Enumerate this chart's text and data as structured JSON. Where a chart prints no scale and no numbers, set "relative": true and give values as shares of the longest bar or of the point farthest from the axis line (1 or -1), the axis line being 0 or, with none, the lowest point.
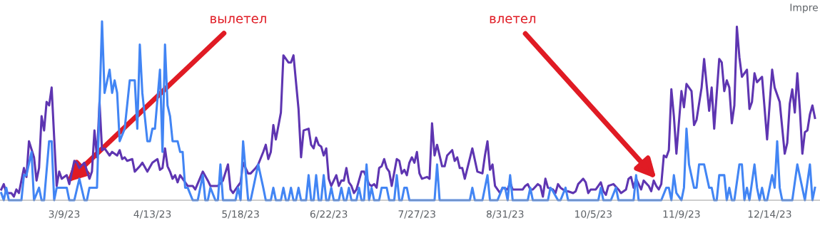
{
  "chart_data": {
    "type": "line",
    "relative": true,
    "tick_labels": "x",
    "xlim": [
      "2023-02-11T12:00",
      "2024-01-03"
    ],
    "xticks": [
      {
        "value": "2023-03-09",
        "label": "3/9/23"
      },
      {
        "value": "2023-04-13",
        "label": "4/13/23"
      },
      {
        "value": "2023-05-18",
        "label": "5/18/23"
      },
      {
        "value": "2023-06-22",
        "label": "6/22/23"
      },
      {
        "value": "2023-07-27",
        "label": "7/27/23"
      },
      {
        "value": "2023-08-31",
        "label": "8/31/23"
      },
      {
        "value": "2023-10-05",
        "label": "10/5/23"
      },
      {
        "value": "2023-11-09",
        "label": "11/9/23"
      },
      {
        "value": "2023-12-14",
        "label": "12/14/23"
      }
    ],
    "annotations": [
      {
        "text": "вылетел",
        "x": "2023-03-10",
        "y": 0.1
      },
      {
        "text": "влетел",
        "x": "2023-10-30",
        "y": 0.12
      },
      "Impre"
    ],
    "series": [
      {
        "color": "#5e35b1",
        "x": [
          "2023-02-12",
          "2023-02-13",
          "2023-02-14",
          "2023-02-16",
          "2023-02-17",
          "2023-02-18",
          "2023-02-19",
          "2023-02-21",
          "2023-02-22",
          "2023-02-23",
          "2023-02-25",
          "2023-02-26",
          "2023-02-27",
          "2023-02-28",
          "2023-03-01",
          "2023-03-02",
          "2023-03-03",
          "2023-03-04",
          "2023-03-05",
          "2023-03-06",
          "2023-03-07",
          "2023-03-08",
          "2023-03-09",
          "2023-03-10",
          "2023-03-11",
          "2023-03-13",
          "2023-03-14",
          "2023-03-15",
          "2023-03-17",
          "2023-03-19",
          "2023-03-20",
          "2023-03-21",
          "2023-03-22",
          "2023-03-23",
          "2023-03-24",
          "2023-03-25",
          "2023-03-27",
          "2023-03-28",
          "2023-03-30",
          "2023-03-31",
          "2023-04-01",
          "2023-04-02",
          "2023-04-03",
          "2023-04-05",
          "2023-04-06",
          "2023-04-08",
          "2023-04-09",
          "2023-04-11",
          "2023-04-13",
          "2023-04-15",
          "2023-04-16",
          "2023-04-17",
          "2023-04-18",
          "2023-04-19",
          "2023-04-20",
          "2023-04-21",
          "2023-04-22",
          "2023-04-23",
          "2023-04-24",
          "2023-04-26",
          "2023-04-27",
          "2023-04-29",
          "2023-04-30",
          "2023-05-03",
          "2023-05-05",
          "2023-05-06",
          "2023-05-08",
          "2023-05-09",
          "2023-05-11",
          "2023-05-13",
          "2023-05-14",
          "2023-05-15",
          "2023-05-18",
          "2023-05-19",
          "2023-05-21",
          "2023-05-22",
          "2023-05-24",
          "2023-05-25",
          "2023-05-27",
          "2023-05-28",
          "2023-05-29",
          "2023-05-30",
          "2023-05-31",
          "2023-06-01",
          "2023-06-03",
          "2023-06-04",
          "2023-06-06",
          "2023-06-07",
          "2023-06-08",
          "2023-06-10",
          "2023-06-11",
          "2023-06-12",
          "2023-06-14",
          "2023-06-15",
          "2023-06-16",
          "2023-06-17",
          "2023-06-18",
          "2023-06-19",
          "2023-06-20",
          "2023-06-21",
          "2023-06-22",
          "2023-06-23",
          "2023-06-25",
          "2023-06-26",
          "2023-06-27",
          "2023-06-28",
          "2023-06-29",
          "2023-06-30",
          "2023-07-01",
          "2023-07-02",
          "2023-07-03",
          "2023-07-05",
          "2023-07-06",
          "2023-07-08",
          "2023-07-09",
          "2023-07-10",
          "2023-07-11",
          "2023-07-12",
          "2023-07-13",
          "2023-07-14",
          "2023-07-15",
          "2023-07-16",
          "2023-07-17",
          "2023-07-19",
          "2023-07-20",
          "2023-07-21",
          "2023-07-22",
          "2023-07-23",
          "2023-07-24",
          "2023-07-25",
          "2023-07-26",
          "2023-07-27",
          "2023-07-28",
          "2023-07-29",
          "2023-07-31",
          "2023-08-01",
          "2023-08-02",
          "2023-08-03",
          "2023-08-04",
          "2023-08-06",
          "2023-08-07",
          "2023-08-08",
          "2023-08-10",
          "2023-08-11",
          "2023-08-12",
          "2023-08-13",
          "2023-08-14",
          "2023-08-15",
          "2023-08-18",
          "2023-08-20",
          "2023-08-22",
          "2023-08-23",
          "2023-08-24",
          "2023-08-25",
          "2023-08-26",
          "2023-08-27",
          "2023-08-29",
          "2023-08-30",
          "2023-09-01",
          "2023-09-02",
          "2023-09-03",
          "2023-09-04",
          "2023-09-05",
          "2023-09-07",
          "2023-09-08",
          "2023-09-09",
          "2023-09-10",
          "2023-09-11",
          "2023-09-13",
          "2023-09-14",
          "2023-09-15",
          "2023-09-16",
          "2023-09-17",
          "2023-09-19",
          "2023-09-20",
          "2023-09-21",
          "2023-09-22",
          "2023-09-24",
          "2023-09-25",
          "2023-09-27",
          "2023-09-28",
          "2023-09-29",
          "2023-10-01",
          "2023-10-02",
          "2023-10-03",
          "2023-10-04",
          "2023-10-06",
          "2023-10-07",
          "2023-10-08",
          "2023-10-09",
          "2023-10-10",
          "2023-10-11",
          "2023-10-13",
          "2023-10-15",
          "2023-10-16",
          "2023-10-18",
          "2023-10-19",
          "2023-10-20",
          "2023-10-21",
          "2023-10-22",
          "2023-10-23",
          "2023-10-24",
          "2023-10-25",
          "2023-10-27",
          "2023-10-28",
          "2023-10-29",
          "2023-10-30",
          "2023-10-31",
          "2023-11-01",
          "2023-11-02",
          "2023-11-03",
          "2023-11-04",
          "2023-11-05",
          "2023-11-06",
          "2023-11-07",
          "2023-11-09",
          "2023-11-10",
          "2023-11-11",
          "2023-11-13",
          "2023-11-14",
          "2023-11-15",
          "2023-11-17",
          "2023-11-18",
          "2023-11-20",
          "2023-11-21",
          "2023-11-22",
          "2023-11-24",
          "2023-11-25",
          "2023-11-26",
          "2023-11-27",
          "2023-11-28",
          "2023-11-29",
          "2023-11-30",
          "2023-12-01",
          "2023-12-02",
          "2023-12-03",
          "2023-12-05",
          "2023-12-06",
          "2023-12-07",
          "2023-12-08",
          "2023-12-09",
          "2023-12-11",
          "2023-12-13",
          "2023-12-15",
          "2023-12-16",
          "2023-12-18",
          "2023-12-20",
          "2023-12-21",
          "2023-12-22",
          "2023-12-23",
          "2023-12-24",
          "2023-12-25",
          "2023-12-26",
          "2023-12-27",
          "2023-12-28",
          "2023-12-29",
          "2023-12-30",
          "2023-12-31",
          "2024-01-01"
        ],
        "values": [
          0.06,
          0.09,
          0.04,
          0.04,
          0.02,
          0.06,
          0.04,
          0.18,
          0.13,
          0.33,
          0.24,
          0.11,
          0.18,
          0.47,
          0.39,
          0.55,
          0.53,
          0.63,
          0.35,
          0.08,
          0.16,
          0.12,
          0.13,
          0.14,
          0.09,
          0.22,
          0.21,
          0.18,
          0.21,
          0.12,
          0.16,
          0.39,
          0.24,
          0.55,
          0.28,
          0.29,
          0.25,
          0.27,
          0.25,
          0.28,
          0.23,
          0.24,
          0.22,
          0.23,
          0.16,
          0.19,
          0.21,
          0.16,
          0.21,
          0.23,
          0.17,
          0.18,
          0.29,
          0.19,
          0.16,
          0.12,
          0.14,
          0.1,
          0.14,
          0.1,
          0.08,
          0.08,
          0.06,
          0.16,
          0.11,
          0.08,
          0.08,
          0.08,
          0.11,
          0.2,
          0.06,
          0.04,
          0.1,
          0.21,
          0.15,
          0.15,
          0.18,
          0.2,
          0.27,
          0.31,
          0.23,
          0.27,
          0.42,
          0.34,
          0.49,
          0.81,
          0.77,
          0.77,
          0.81,
          0.51,
          0.24,
          0.39,
          0.4,
          0.31,
          0.29,
          0.35,
          0.31,
          0.3,
          0.25,
          0.29,
          0.12,
          0.08,
          0.14,
          0.08,
          0.11,
          0.11,
          0.18,
          0.1,
          0.08,
          0.04,
          0.06,
          0.16,
          0.16,
          0.09,
          0.08,
          0.09,
          0.07,
          0.18,
          0.19,
          0.23,
          0.18,
          0.16,
          0.08,
          0.23,
          0.22,
          0.15,
          0.17,
          0.14,
          0.21,
          0.24,
          0.21,
          0.27,
          0.15,
          0.12,
          0.13,
          0.12,
          0.43,
          0.25,
          0.31,
          0.19,
          0.19,
          0.25,
          0.28,
          0.22,
          0.24,
          0.18,
          0.18,
          0.12,
          0.29,
          0.16,
          0.15,
          0.25,
          0.33,
          0.17,
          0.2,
          0.08,
          0.04,
          0.07,
          0.06,
          0.1,
          0.06,
          0.06,
          0.06,
          0.06,
          0.08,
          0.09,
          0.06,
          0.06,
          0.09,
          0.08,
          0.02,
          0.12,
          0.07,
          0.06,
          0.04,
          0.09,
          0.07,
          0.05,
          0.05,
          0.04,
          0.05,
          0.09,
          0.12,
          0.1,
          0.04,
          0.06,
          0.06,
          0.08,
          0.1,
          0.05,
          0.03,
          0.08,
          0.09,
          0.06,
          0.04,
          0.06,
          0.12,
          0.13,
          0.07,
          0.12,
          0.09,
          0.06,
          0.11,
          0.08,
          0.05,
          0.11,
          0.08,
          0.06,
          0.09,
          0.25,
          0.24,
          0.28,
          0.62,
          0.47,
          0.26,
          0.61,
          0.52,
          0.65,
          0.61,
          0.42,
          0.45,
          0.63,
          0.79,
          0.5,
          0.63,
          0.4,
          0.79,
          0.77,
          0.61,
          0.67,
          0.63,
          0.43,
          0.53,
          0.97,
          0.8,
          0.69,
          0.73,
          0.51,
          0.55,
          0.71,
          0.66,
          0.69,
          0.34,
          0.73,
          0.63,
          0.55,
          0.26,
          0.32,
          0.54,
          0.62,
          0.49,
          0.71,
          0.51,
          0.26,
          0.38,
          0.39,
          0.48,
          0.53,
          0.46
        ]
      },
      {
        "color": "#4285f4",
        "x": [
          "2023-02-12",
          "2023-02-13",
          "2023-02-14",
          "2023-02-15",
          "2023-02-20",
          "2023-02-21",
          "2023-02-22",
          "2023-02-24",
          "2023-02-25",
          "2023-02-27",
          "2023-02-28",
          "2023-03-01",
          "2023-03-03",
          "2023-03-04",
          "2023-03-05",
          "2023-03-06",
          "2023-03-10",
          "2023-03-11",
          "2023-03-13",
          "2023-03-15",
          "2023-03-17",
          "2023-03-18",
          "2023-03-19",
          "2023-03-22",
          "2023-03-24",
          "2023-03-25",
          "2023-03-27",
          "2023-03-28",
          "2023-03-29",
          "2023-03-30",
          "2023-03-31",
          "2023-04-02",
          "2023-04-04",
          "2023-04-06",
          "2023-04-07",
          "2023-04-08",
          "2023-04-09",
          "2023-04-11",
          "2023-04-12",
          "2023-04-13",
          "2023-04-14",
          "2023-04-16",
          "2023-04-17",
          "2023-04-18",
          "2023-04-19",
          "2023-04-20",
          "2023-04-21",
          "2023-04-23",
          "2023-04-24",
          "2023-04-25",
          "2023-04-26",
          "2023-04-27",
          "2023-04-29",
          "2023-05-01",
          "2023-05-02",
          "2023-05-03",
          "2023-05-04",
          "2023-05-05",
          "2023-05-06",
          "2023-05-08",
          "2023-05-09",
          "2023-05-10",
          "2023-05-11",
          "2023-05-16",
          "2023-05-17",
          "2023-05-18",
          "2023-05-19",
          "2023-05-21",
          "2023-05-22",
          "2023-05-25",
          "2023-05-27",
          "2023-05-28",
          "2023-05-30",
          "2023-05-31",
          "2023-06-01",
          "2023-06-03",
          "2023-06-04",
          "2023-06-05",
          "2023-06-06",
          "2023-06-07",
          "2023-06-08",
          "2023-06-09",
          "2023-06-10",
          "2023-06-11",
          "2023-06-13",
          "2023-06-14",
          "2023-06-15",
          "2023-06-16",
          "2023-06-17",
          "2023-06-18",
          "2023-06-19",
          "2023-06-20",
          "2023-06-21",
          "2023-06-22",
          "2023-06-23",
          "2023-06-24",
          "2023-06-26",
          "2023-06-27",
          "2023-06-28",
          "2023-06-29",
          "2023-06-30",
          "2023-07-01",
          "2023-07-03",
          "2023-07-04",
          "2023-07-05",
          "2023-07-06",
          "2023-07-07",
          "2023-07-08",
          "2023-07-09",
          "2023-07-10",
          "2023-07-12",
          "2023-07-13",
          "2023-07-15",
          "2023-07-16",
          "2023-07-18",
          "2023-07-19",
          "2023-07-20",
          "2023-07-21",
          "2023-07-22",
          "2023-07-23",
          "2023-07-24",
          "2023-08-03",
          "2023-08-04",
          "2023-08-05",
          "2023-08-17",
          "2023-08-18",
          "2023-08-19",
          "2023-08-22",
          "2023-08-24",
          "2023-08-25",
          "2023-08-28",
          "2023-08-30",
          "2023-08-31",
          "2023-09-01",
          "2023-09-02",
          "2023-09-03",
          "2023-09-09",
          "2023-09-10",
          "2023-09-11",
          "2023-09-15",
          "2023-09-17",
          "2023-09-18",
          "2023-09-19",
          "2023-09-21",
          "2023-09-22",
          "2023-09-24",
          "2023-09-25",
          "2023-10-07",
          "2023-10-08",
          "2023-10-09",
          "2023-10-12",
          "2023-10-14",
          "2023-10-15",
          "2023-10-21",
          "2023-10-22",
          "2023-10-23",
          "2023-11-01",
          "2023-11-03",
          "2023-11-04",
          "2023-11-05",
          "2023-11-06",
          "2023-11-07",
          "2023-11-09",
          "2023-11-10",
          "2023-11-11",
          "2023-11-12",
          "2023-11-14",
          "2023-11-15",
          "2023-11-16",
          "2023-11-18",
          "2023-11-20",
          "2023-11-21",
          "2023-11-22",
          "2023-11-23",
          "2023-11-24",
          "2023-11-26",
          "2023-11-27",
          "2023-11-28",
          "2023-11-29",
          "2023-11-30",
          "2023-12-02",
          "2023-12-03",
          "2023-12-04",
          "2023-12-05",
          "2023-12-06",
          "2023-12-08",
          "2023-12-09",
          "2023-12-10",
          "2023-12-11",
          "2023-12-12",
          "2023-12-13",
          "2023-12-15",
          "2023-12-16",
          "2023-12-17",
          "2023-12-18",
          "2023-12-19",
          "2023-12-23",
          "2023-12-25",
          "2023-12-28",
          "2023-12-30",
          "2023-12-31",
          "2024-01-01"
        ],
        "values": [
          0.04,
          0,
          0.07,
          0,
          0,
          0.14,
          0.14,
          0.27,
          0,
          0.07,
          0,
          0,
          0.33,
          0.33,
          0,
          0.07,
          0.07,
          0,
          0,
          0.12,
          0,
          0,
          0.07,
          0.07,
          1,
          0.6,
          0.73,
          0.6,
          0.67,
          0.6,
          0.33,
          0.4,
          0.67,
          0.67,
          0.4,
          0.87,
          0.6,
          0.33,
          0.33,
          0.4,
          0.4,
          0.73,
          0.27,
          0.87,
          0.53,
          0.47,
          0.33,
          0.33,
          0.27,
          0.27,
          0.07,
          0.07,
          0,
          0,
          0.07,
          0.14,
          0,
          0,
          0.07,
          0,
          0,
          0.2,
          0,
          0,
          0.07,
          0,
          0.33,
          0,
          0,
          0.2,
          0.07,
          0,
          0,
          0.07,
          0,
          0,
          0.07,
          0,
          0,
          0.07,
          0,
          0,
          0.07,
          0,
          0,
          0.14,
          0,
          0,
          0.14,
          0,
          0,
          0.14,
          0,
          0,
          0.07,
          0,
          0,
          0.07,
          0,
          0,
          0.07,
          0,
          0,
          0.07,
          0,
          0,
          0.2,
          0,
          0.07,
          0,
          0,
          0.07,
          0.07,
          0,
          0,
          0.14,
          0,
          0,
          0.07,
          0.07,
          0,
          0,
          0.2,
          0,
          0,
          0.07,
          0,
          0,
          0.14,
          0,
          0,
          0.07,
          0.07,
          0,
          0.14,
          0,
          0,
          0.07,
          0,
          0,
          0,
          0.07,
          0.05,
          0,
          0,
          0.07,
          0,
          0,
          0.07,
          0,
          0,
          0.07,
          0,
          0,
          0.14,
          0,
          0,
          0.07,
          0.07,
          0,
          0.14,
          0.04,
          0,
          0.07,
          0.4,
          0.2,
          0.07,
          0.07,
          0.2,
          0.2,
          0.07,
          0.07,
          0,
          0,
          0.14,
          0.14,
          0,
          0.07,
          0,
          0,
          0.2,
          0.2,
          0,
          0.07,
          0,
          0.2,
          0.07,
          0,
          0.07,
          0,
          0,
          0.14,
          0.07,
          0.33,
          0.07,
          0,
          0,
          0.2,
          0,
          0.2,
          0,
          0.07
        ]
      }
    ]
  }
}
